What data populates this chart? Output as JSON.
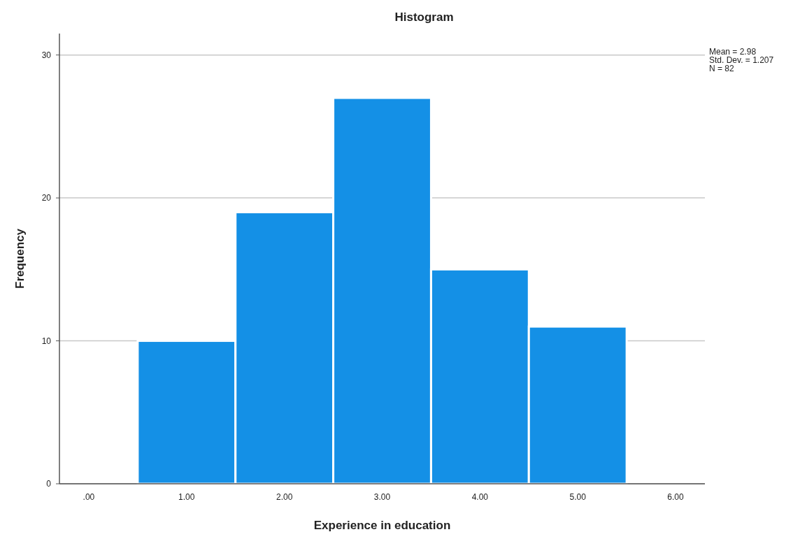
{
  "chart_data": {
    "type": "histogram",
    "title": "Histogram",
    "xlabel": "Experience in education",
    "ylabel": "Frequency",
    "bins": [
      0.5,
      1.5,
      2.5,
      3.5,
      4.5,
      5.5
    ],
    "values": [
      10,
      19,
      27,
      15,
      11
    ],
    "color": "#1490e6",
    "xlim": [
      -0.3,
      6.3
    ],
    "xticks": [
      {
        "value": 0,
        "label": ".00"
      },
      {
        "value": 1,
        "label": "1.00"
      },
      {
        "value": 2,
        "label": "2.00"
      },
      {
        "value": 3,
        "label": "3.00"
      },
      {
        "value": 4,
        "label": "4.00"
      },
      {
        "value": 5,
        "label": "5.00"
      },
      {
        "value": 6,
        "label": "6.00"
      }
    ],
    "ylim": [
      0,
      31.5
    ],
    "yticks": [
      0,
      10,
      20,
      30
    ],
    "grid": "y",
    "annotations": [
      "Mean = 2.98",
      "Std. Dev. = 1.207",
      "N = 82"
    ]
  }
}
